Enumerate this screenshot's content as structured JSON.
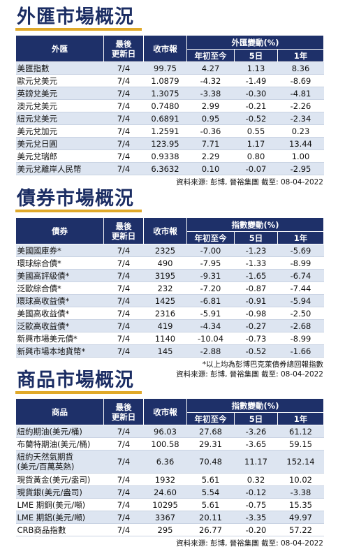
{
  "fx": {
    "title": "外匯市場概況",
    "headers": {
      "name": "外匯",
      "updated": "最後\n更新日",
      "close": "收市報",
      "change": "外匯變動(%)",
      "ytd": "年初至今",
      "d5": "5日",
      "y1": "1年"
    },
    "rows": [
      {
        "name": "美匯指數",
        "date": "7/4",
        "close": "99.75",
        "ytd": "4.27",
        "d5": "1.13",
        "y1": "8.36"
      },
      {
        "name": "歐元兌美元",
        "date": "7/4",
        "close": "1.0879",
        "ytd": "-4.32",
        "d5": "-1.49",
        "y1": "-8.69"
      },
      {
        "name": "英鎊兌美元",
        "date": "7/4",
        "close": "1.3075",
        "ytd": "-3.38",
        "d5": "-0.30",
        "y1": "-4.81"
      },
      {
        "name": "澳元兌美元",
        "date": "7/4",
        "close": "0.7480",
        "ytd": "2.99",
        "d5": "-0.21",
        "y1": "-2.26"
      },
      {
        "name": "紐元兌美元",
        "date": "7/4",
        "close": "0.6891",
        "ytd": "0.95",
        "d5": "-0.52",
        "y1": "-2.34"
      },
      {
        "name": "美元兌加元",
        "date": "7/4",
        "close": "1.2591",
        "ytd": "-0.36",
        "d5": "0.55",
        "y1": "0.23"
      },
      {
        "name": "美元兌日圓",
        "date": "7/4",
        "close": "123.95",
        "ytd": "7.71",
        "d5": "1.17",
        "y1": "13.44"
      },
      {
        "name": "美元兌瑞郎",
        "date": "7/4",
        "close": "0.9338",
        "ytd": "2.29",
        "d5": "0.80",
        "y1": "1.00"
      },
      {
        "name": "美元兌離岸人民幣",
        "date": "7/4",
        "close": "6.3632",
        "ytd": "0.10",
        "d5": "-0.07",
        "y1": "-2.95"
      }
    ],
    "source": "資料來源: 彭博, 晉裕集團 截至: 08-04-2022"
  },
  "bond": {
    "title": "債券市場概況",
    "headers": {
      "name": "債券",
      "updated": "最後\n更新日",
      "close": "收市報",
      "change": "指數變動(%)",
      "ytd": "年初至今",
      "d5": "5日",
      "y1": "1年"
    },
    "rows": [
      {
        "name": "美國國庫券*",
        "date": "7/4",
        "close": "2325",
        "ytd": "-7.00",
        "d5": "-1.23",
        "y1": "-5.69"
      },
      {
        "name": "環球綜合債*",
        "date": "7/4",
        "close": "490",
        "ytd": "-7.95",
        "d5": "-1.33",
        "y1": "-8.99"
      },
      {
        "name": "美國高評級債*",
        "date": "7/4",
        "close": "3195",
        "ytd": "-9.31",
        "d5": "-1.65",
        "y1": "-6.74"
      },
      {
        "name": "泛歐綜合債*",
        "date": "7/4",
        "close": "232",
        "ytd": "-7.20",
        "d5": "-0.87",
        "y1": "-7.44"
      },
      {
        "name": "環球高收益債*",
        "date": "7/4",
        "close": "1425",
        "ytd": "-6.81",
        "d5": "-0.91",
        "y1": "-5.94"
      },
      {
        "name": "美國高收益債*",
        "date": "7/4",
        "close": "2316",
        "ytd": "-5.91",
        "d5": "-0.98",
        "y1": "-2.50"
      },
      {
        "name": "泛歐高收益債*",
        "date": "7/4",
        "close": "419",
        "ytd": "-4.34",
        "d5": "-0.27",
        "y1": "-2.68"
      },
      {
        "name": "新興市場美元債*",
        "date": "7/4",
        "close": "1140",
        "ytd": "-10.04",
        "d5": "-0.73",
        "y1": "-8.99"
      },
      {
        "name": "新興市場本地貨幣*",
        "date": "7/4",
        "close": "145",
        "ytd": "-2.88",
        "d5": "-0.52",
        "y1": "-1.66"
      }
    ],
    "footnote": "*以上均為彭博巴克萊債券總回報指數",
    "source": "資料來源: 彭博, 晉裕集團 截至: 08-04-2022"
  },
  "commodity": {
    "title": "商品市場概況",
    "headers": {
      "name": "商品",
      "updated": "最後\n更新日",
      "close": "收市報",
      "change": "指數變動(%)",
      "ytd": "年初至今",
      "d5": "5日",
      "y1": "1年"
    },
    "rows": [
      {
        "name": "紐約期油(美元/桶)",
        "date": "7/4",
        "close": "96.03",
        "ytd": "27.68",
        "d5": "-3.26",
        "y1": "61.12"
      },
      {
        "name": "布蘭特期油(美元/桶)",
        "date": "7/4",
        "close": "100.58",
        "ytd": "29.31",
        "d5": "-3.65",
        "y1": "59.15"
      },
      {
        "name": "紐約天然氣期貨\n(美元/百萬英熱)",
        "date": "7/4",
        "close": "6.36",
        "ytd": "70.48",
        "d5": "11.17",
        "y1": "152.14",
        "tall": true
      },
      {
        "name": "現貨黃金(美元/盎司)",
        "date": "7/4",
        "close": "1932",
        "ytd": "5.61",
        "d5": "0.32",
        "y1": "10.02"
      },
      {
        "name": "現貨銀(美元/盎司)",
        "date": "7/4",
        "close": "24.60",
        "ytd": "5.54",
        "d5": "-0.12",
        "y1": "-3.38"
      },
      {
        "name": "LME 期銅(美元/噸)",
        "date": "7/4",
        "close": "10295",
        "ytd": "5.61",
        "d5": "-0.75",
        "y1": "15.35"
      },
      {
        "name": "LME 期鋁(美元/噸)",
        "date": "7/4",
        "close": "3367",
        "ytd": "20.11",
        "d5": "-3.35",
        "y1": "49.97"
      },
      {
        "name": "CRB商品指數",
        "date": "7/4",
        "close": "295",
        "ytd": "26.77",
        "d5": "-0.20",
        "y1": "57.22"
      }
    ],
    "source": "資料來源: 彭博, 晉裕集團 截至: 08-04-2022"
  }
}
